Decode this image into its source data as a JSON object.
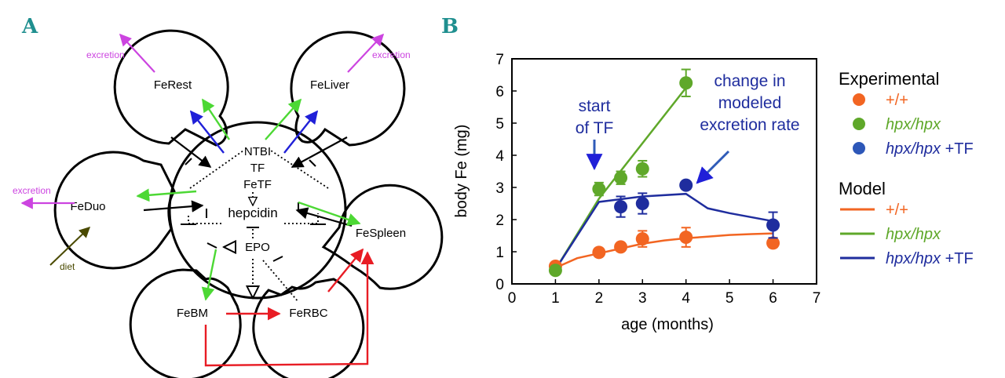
{
  "panel_a": {
    "letter": "A",
    "compartments": {
      "rest": "FeRest",
      "liver": "FeLiver",
      "duo": "FeDuo",
      "spleen": "FeSpleen",
      "bm": "FeBM",
      "rbc": "FeRBC"
    },
    "center": {
      "ntbi": "NTBI",
      "tf": "TF",
      "fetf": "FeTF",
      "hepcidin": "hepcidin",
      "epo": "EPO"
    },
    "labels": {
      "excretion_rest": "excretion",
      "excretion_liver": "excretion",
      "excretion_duo": "excretion",
      "diet": "diet"
    },
    "colors": {
      "green": "#4cd834",
      "blue": "#2020d8",
      "red": "#e81c24",
      "magenta": "#cc44e0",
      "olive": "#4a4a00",
      "black": "#000000"
    }
  },
  "panel_b": {
    "letter": "B",
    "legend": {
      "experimental_heading": "Experimental",
      "model_heading": "Model",
      "items": [
        {
          "label": "+/+",
          "color": "#f26522",
          "italic": false
        },
        {
          "label": "hpx/hpx",
          "color": "#5fa82a",
          "italic": true
        },
        {
          "label": "hpx/hpx",
          "suffix": " +TF",
          "color": "#1f2d9e",
          "italic": true
        }
      ]
    },
    "annotations": {
      "start_line1": "start",
      "start_line2": "of TF",
      "change_line1": "change in",
      "change_line2": "modeled",
      "change_line3": "excretion rate"
    }
  },
  "chart_data": {
    "type": "scatter",
    "title": "",
    "xlabel": "age (months)",
    "ylabel": "body Fe (mg)",
    "xlim": [
      0,
      7
    ],
    "ylim": [
      0,
      7
    ],
    "xticks": [
      0,
      1,
      2,
      3,
      4,
      5,
      6,
      7
    ],
    "yticks": [
      0,
      1,
      2,
      3,
      4,
      5,
      6,
      7
    ],
    "series": [
      {
        "name": "+/+",
        "color": "#f26522",
        "points": [
          {
            "x": 1,
            "y": 0.55,
            "err": 0.08
          },
          {
            "x": 2,
            "y": 0.98,
            "err": 0.1
          },
          {
            "x": 2.5,
            "y": 1.15,
            "err": 0.12
          },
          {
            "x": 3,
            "y": 1.4,
            "err": 0.25
          },
          {
            "x": 4,
            "y": 1.45,
            "err": 0.3
          },
          {
            "x": 6,
            "y": 1.27,
            "err": 0.1
          }
        ],
        "model": [
          [
            1,
            0.5
          ],
          [
            1.5,
            0.8
          ],
          [
            2,
            0.95
          ],
          [
            2.5,
            1.1
          ],
          [
            3,
            1.25
          ],
          [
            3.5,
            1.35
          ],
          [
            4,
            1.42
          ],
          [
            4.5,
            1.47
          ],
          [
            5,
            1.52
          ],
          [
            5.5,
            1.55
          ],
          [
            6,
            1.57
          ]
        ]
      },
      {
        "name": "hpx/hpx",
        "color": "#5fa82a",
        "points": [
          {
            "x": 1,
            "y": 0.42,
            "err": 0.08
          },
          {
            "x": 2,
            "y": 2.95,
            "err": 0.2
          },
          {
            "x": 2.5,
            "y": 3.3,
            "err": 0.2
          },
          {
            "x": 3,
            "y": 3.58,
            "err": 0.25
          },
          {
            "x": 4,
            "y": 6.25,
            "err": 0.42
          }
        ],
        "model": [
          [
            1,
            0.45
          ],
          [
            2,
            2.65
          ],
          [
            4,
            6.1
          ]
        ]
      },
      {
        "name": "hpx/hpx +TF",
        "color": "#1f2d9e",
        "points": [
          {
            "x": 2.5,
            "y": 2.4,
            "err": 0.32
          },
          {
            "x": 3,
            "y": 2.5,
            "err": 0.32
          },
          {
            "x": 4,
            "y": 3.07,
            "err": 0.08
          },
          {
            "x": 6,
            "y": 1.83,
            "err": 0.4
          }
        ],
        "model": [
          [
            1,
            0.45
          ],
          [
            2,
            2.55
          ],
          [
            3,
            2.72
          ],
          [
            4,
            2.8
          ],
          [
            4.5,
            2.35
          ],
          [
            5,
            2.2
          ],
          [
            6,
            1.95
          ]
        ]
      }
    ]
  }
}
